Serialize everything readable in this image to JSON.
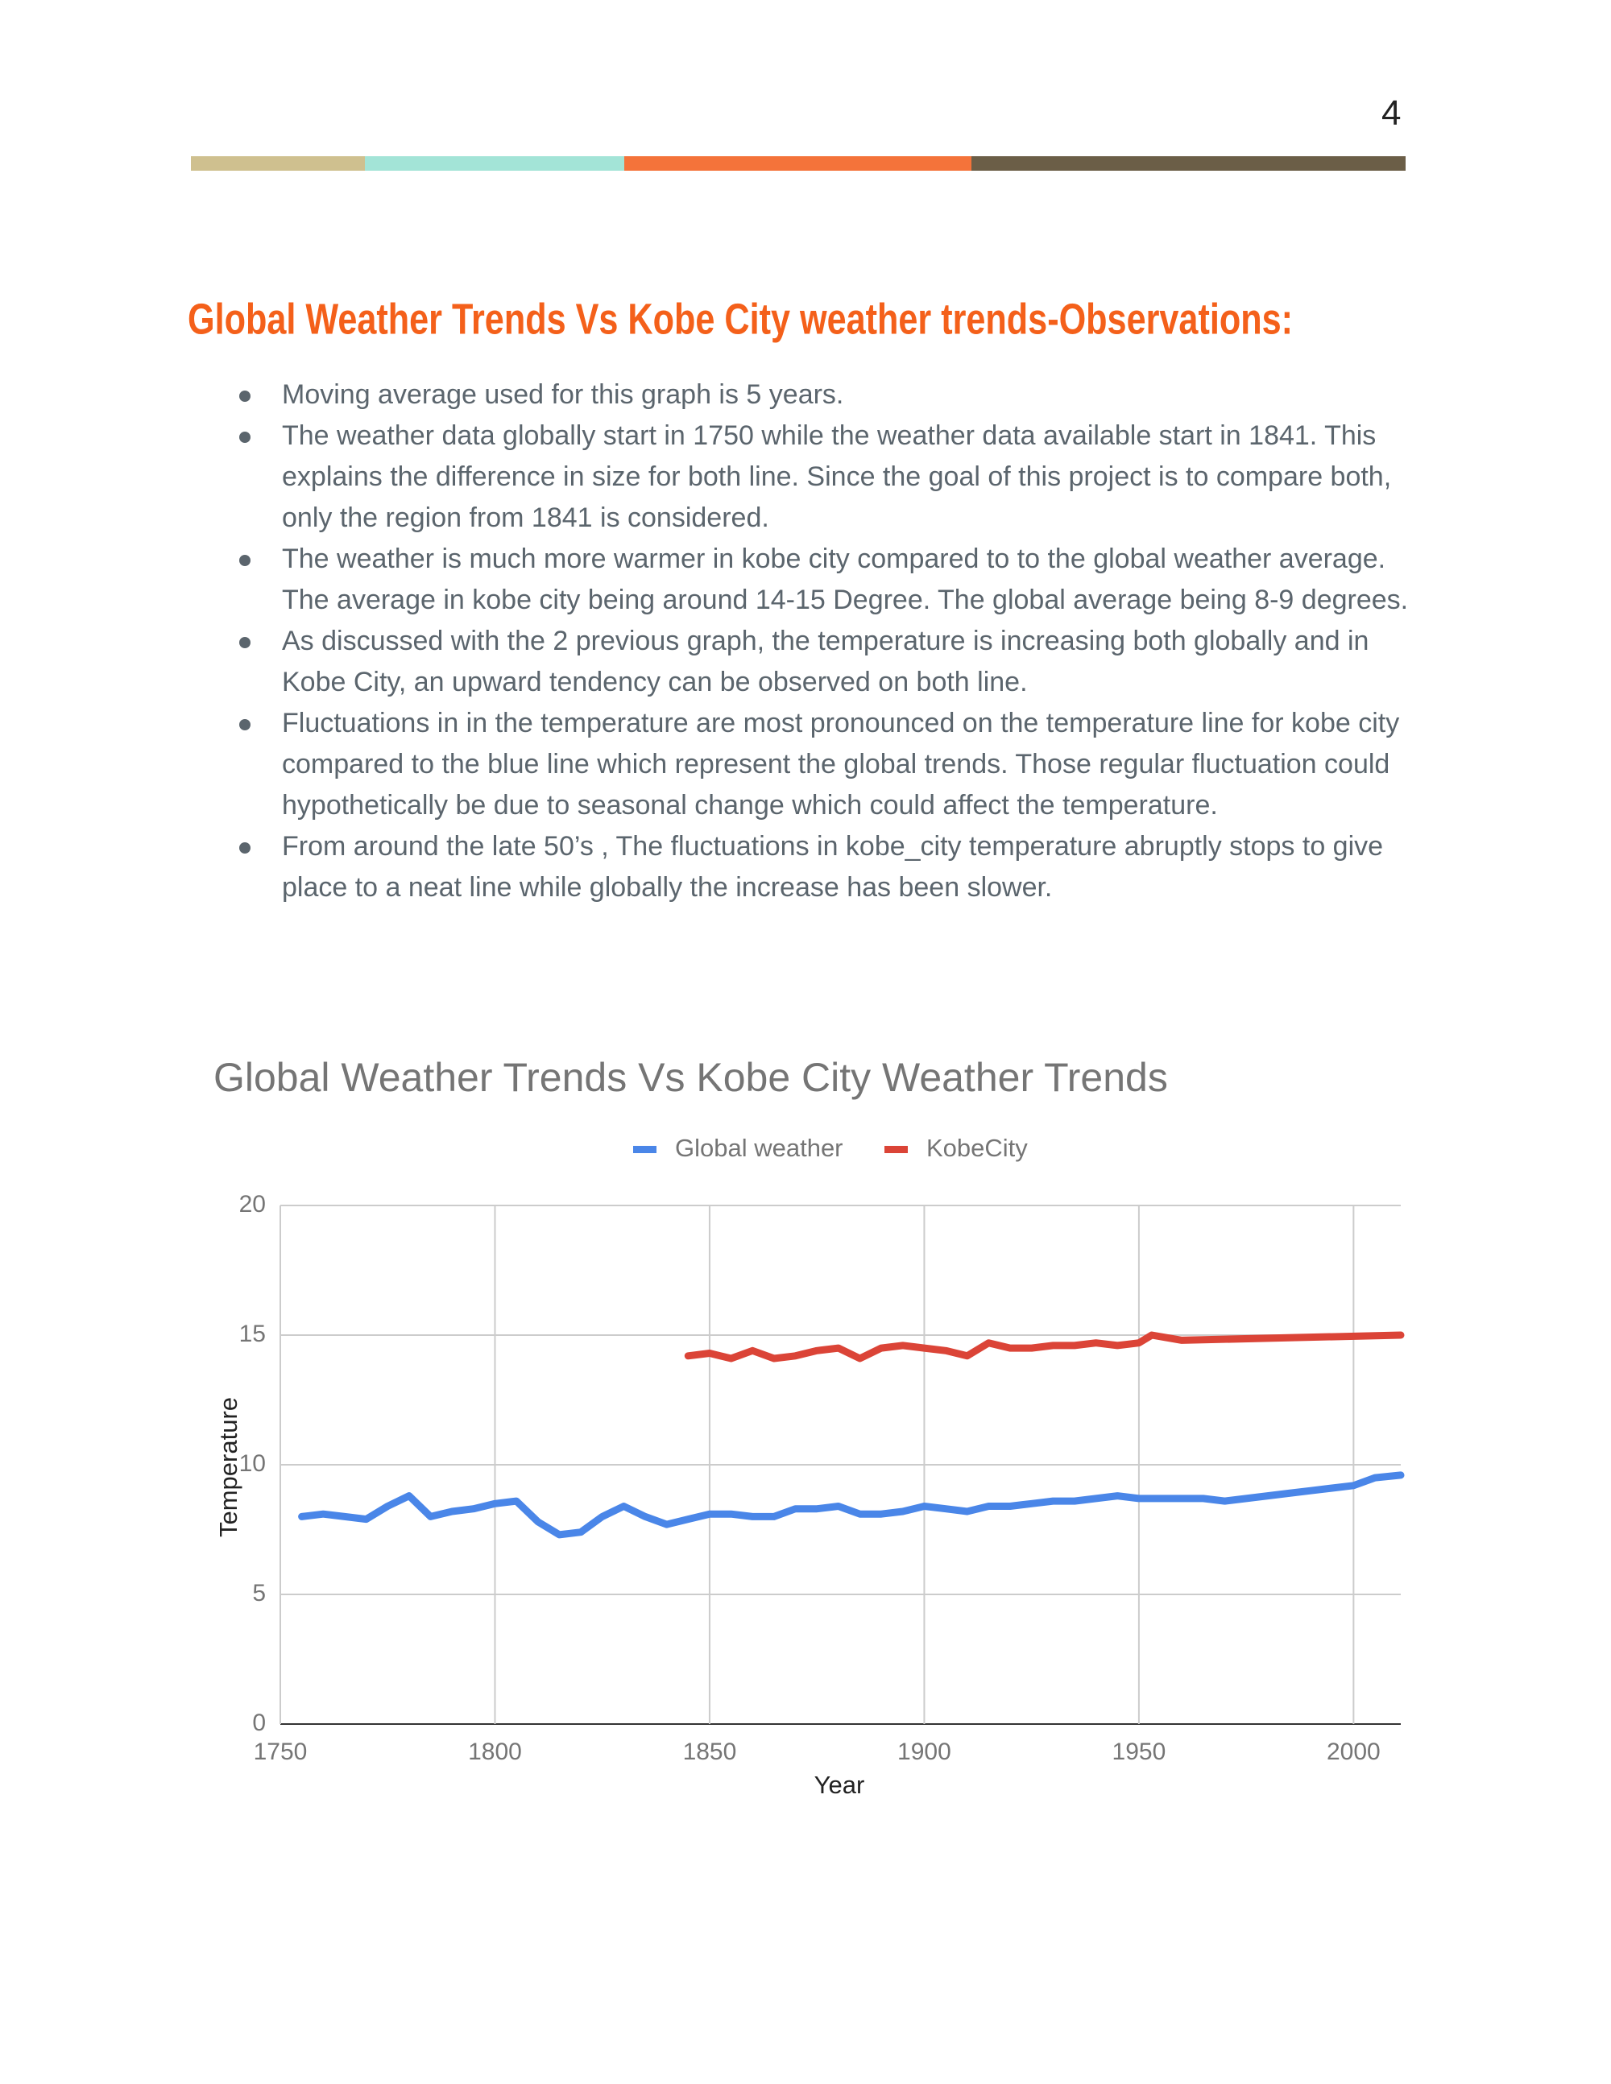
{
  "page_number": "4",
  "heading": "Global Weather Trends Vs Kobe City weather trends-Observations:",
  "bullets": [
    "Moving average used for this graph is 5 years.",
    "The weather data globally start in 1750 while the weather data available start in 1841. This explains the difference in size for both line. Since the goal of this project is to compare both, only the region from 1841 is considered.",
    "The weather is much more warmer in kobe city compared to to the global weather average. The average in kobe city being around 14-15 Degree. The global average being 8-9 degrees.",
    "As discussed with the 2 previous graph, the temperature is increasing both globally and in Kobe City, an upward tendency can be observed on both line.",
    "Fluctuations in in the temperature are most pronounced on the temperature line for kobe city compared to the blue line which represent the global trends. Those regular fluctuation could hypothetically be due to seasonal change which could affect the temperature.",
    "From around the late 50’s , The fluctuations in kobe_city temperature abruptly stops to give place to a neat line while globally the increase has been slower."
  ],
  "chart_data": {
    "type": "line",
    "title": "Global Weather Trends Vs Kobe City Weather Trends",
    "x_label": "Year",
    "y_label": "Temperature",
    "xlim": [
      1750,
      2011
    ],
    "xticks": [
      1750,
      1800,
      1850,
      1900,
      1950,
      2000
    ],
    "ylim": [
      0,
      20
    ],
    "yticks": [
      0,
      5,
      10,
      15,
      20
    ],
    "grid": true,
    "legend": "top",
    "series": [
      {
        "name": "Global weather",
        "color": "#4a86e8",
        "x": [
          1755,
          1760,
          1765,
          1770,
          1775,
          1780,
          1785,
          1790,
          1795,
          1800,
          1805,
          1810,
          1815,
          1820,
          1825,
          1830,
          1835,
          1840,
          1845,
          1850,
          1855,
          1860,
          1865,
          1870,
          1875,
          1880,
          1885,
          1890,
          1895,
          1900,
          1905,
          1910,
          1915,
          1920,
          1925,
          1930,
          1935,
          1940,
          1945,
          1950,
          1955,
          1960,
          1965,
          1970,
          1975,
          1980,
          1985,
          1990,
          1995,
          2000,
          2005,
          2011
        ],
        "values": [
          8.0,
          8.1,
          8.0,
          7.9,
          8.4,
          8.8,
          8.0,
          8.2,
          8.3,
          8.5,
          8.6,
          7.8,
          7.3,
          7.4,
          8.0,
          8.4,
          8.0,
          7.7,
          7.9,
          8.1,
          8.1,
          8.0,
          8.0,
          8.3,
          8.3,
          8.4,
          8.1,
          8.1,
          8.2,
          8.4,
          8.3,
          8.2,
          8.4,
          8.4,
          8.5,
          8.6,
          8.6,
          8.7,
          8.8,
          8.7,
          8.7,
          8.7,
          8.7,
          8.6,
          8.7,
          8.8,
          8.9,
          9.0,
          9.1,
          9.2,
          9.5,
          9.6
        ]
      },
      {
        "name": "KobeCity",
        "color": "#db4437",
        "x": [
          1845,
          1850,
          1855,
          1860,
          1865,
          1870,
          1875,
          1880,
          1885,
          1890,
          1895,
          1900,
          1905,
          1910,
          1915,
          1920,
          1925,
          1930,
          1935,
          1940,
          1945,
          1950,
          1953,
          1960,
          2011
        ],
        "values": [
          14.2,
          14.3,
          14.1,
          14.4,
          14.1,
          14.2,
          14.4,
          14.5,
          14.1,
          14.5,
          14.6,
          14.5,
          14.4,
          14.2,
          14.7,
          14.5,
          14.5,
          14.6,
          14.6,
          14.7,
          14.6,
          14.7,
          15.0,
          14.8,
          15.0
        ]
      }
    ]
  }
}
